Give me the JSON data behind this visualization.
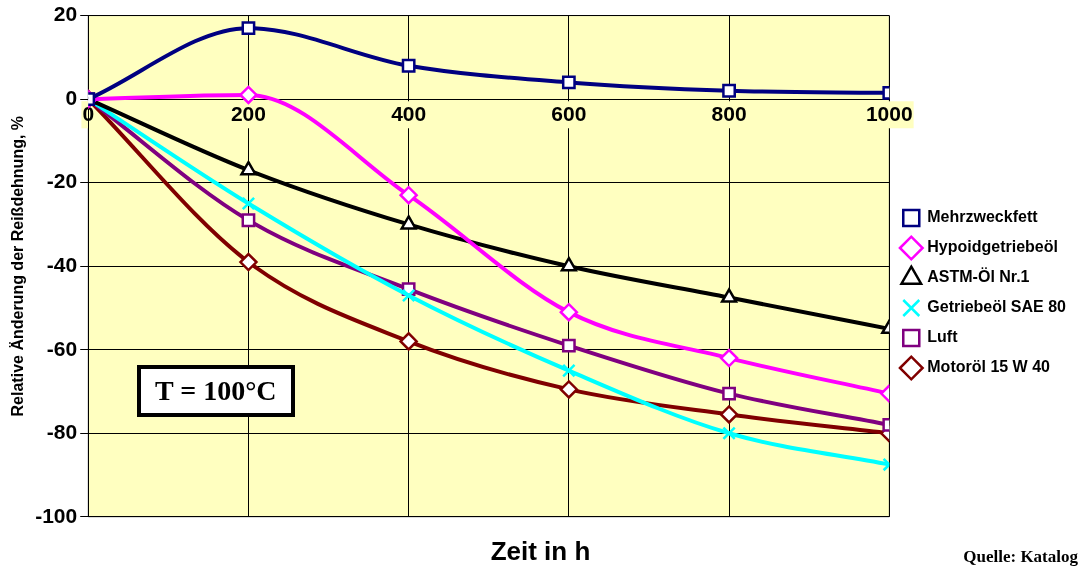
{
  "chart_data": {
    "type": "line",
    "xlabel": "Zeit in h",
    "ylabel": "Relative Änderung der Reißdehnung, %",
    "x": [
      0,
      200,
      400,
      600,
      800,
      1000
    ],
    "xlim": [
      0,
      1000
    ],
    "xticks": [
      0,
      200,
      400,
      600,
      800,
      1000
    ],
    "ylim": [
      -100,
      20
    ],
    "yticks": [
      -100,
      -80,
      -60,
      -40,
      -20,
      0,
      20
    ],
    "grid": true,
    "legend": "right",
    "series": [
      {
        "name": "Mehrzweckfett",
        "color": "#000080",
        "marker": "square",
        "values": [
          0,
          17,
          8,
          4,
          2,
          1.5
        ]
      },
      {
        "name": "Hypoidgetriebeöl",
        "color": "#ff00ff",
        "marker": "diamond",
        "values": [
          0,
          1,
          -23,
          -51,
          -62,
          -70.5
        ]
      },
      {
        "name": "ASTM-Öl Nr.1",
        "color": "#000000",
        "marker": "triangle",
        "values": [
          0,
          -17,
          -30,
          -40,
          -47.5,
          -55
        ]
      },
      {
        "name": "Getriebeöl SAE 80",
        "color": "#00ffff",
        "marker": "cross",
        "values": [
          0,
          -25,
          -47,
          -65,
          -80,
          -87.5
        ]
      },
      {
        "name": "Luft",
        "color": "#800080",
        "marker": "square",
        "values": [
          0,
          -29,
          -45.5,
          -59,
          -70.5,
          -78
        ]
      },
      {
        "name": "Motoröl 15 W 40",
        "color": "#800000",
        "marker": "diamond",
        "values": [
          0,
          -39,
          -58,
          -69.5,
          -75.5,
          -80
        ]
      }
    ],
    "annotations": [
      "T = 100°C",
      "Quelle: Katalog"
    ]
  }
}
